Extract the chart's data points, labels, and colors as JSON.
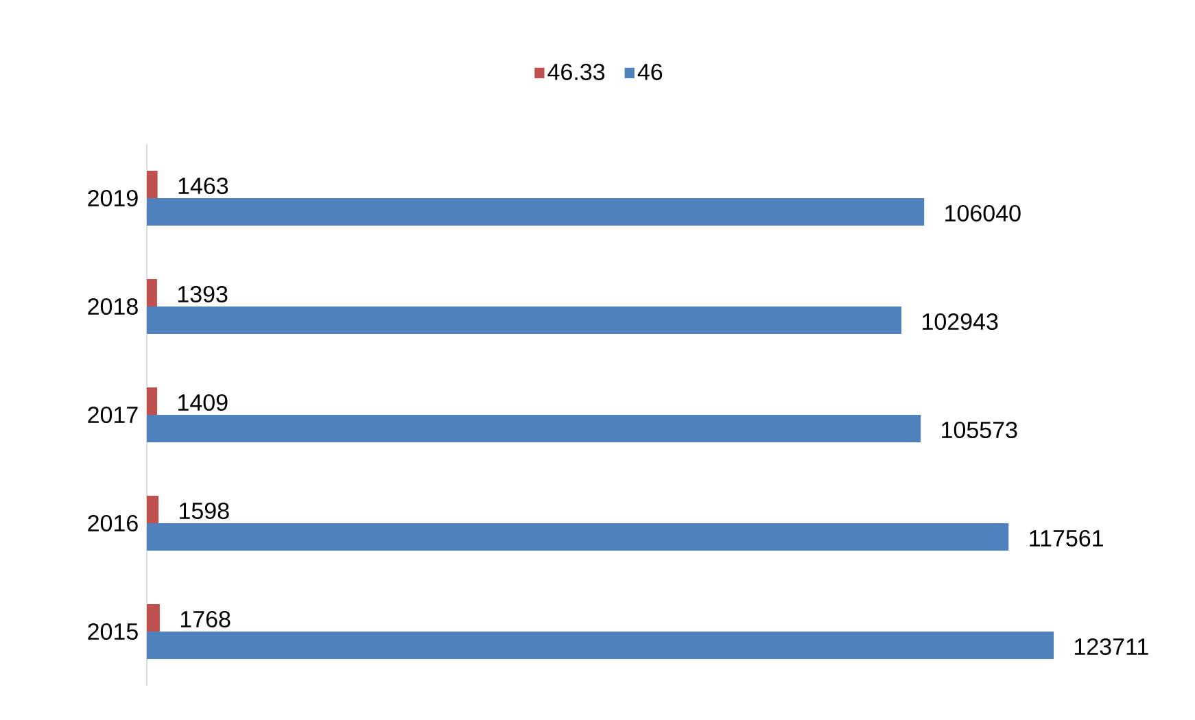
{
  "chart_data": {
    "type": "bar",
    "orientation": "horizontal",
    "categories": [
      "2019",
      "2018",
      "2017",
      "2016",
      "2015"
    ],
    "series": [
      {
        "name": "46.33",
        "color": "#c0504d",
        "values": [
          1463,
          1393,
          1409,
          1598,
          1768
        ]
      },
      {
        "name": "46",
        "color": "#4f81bd",
        "values": [
          106040,
          102943,
          105573,
          117561,
          123711
        ]
      }
    ],
    "data_labels": true,
    "legend": "top",
    "grid": false
  }
}
